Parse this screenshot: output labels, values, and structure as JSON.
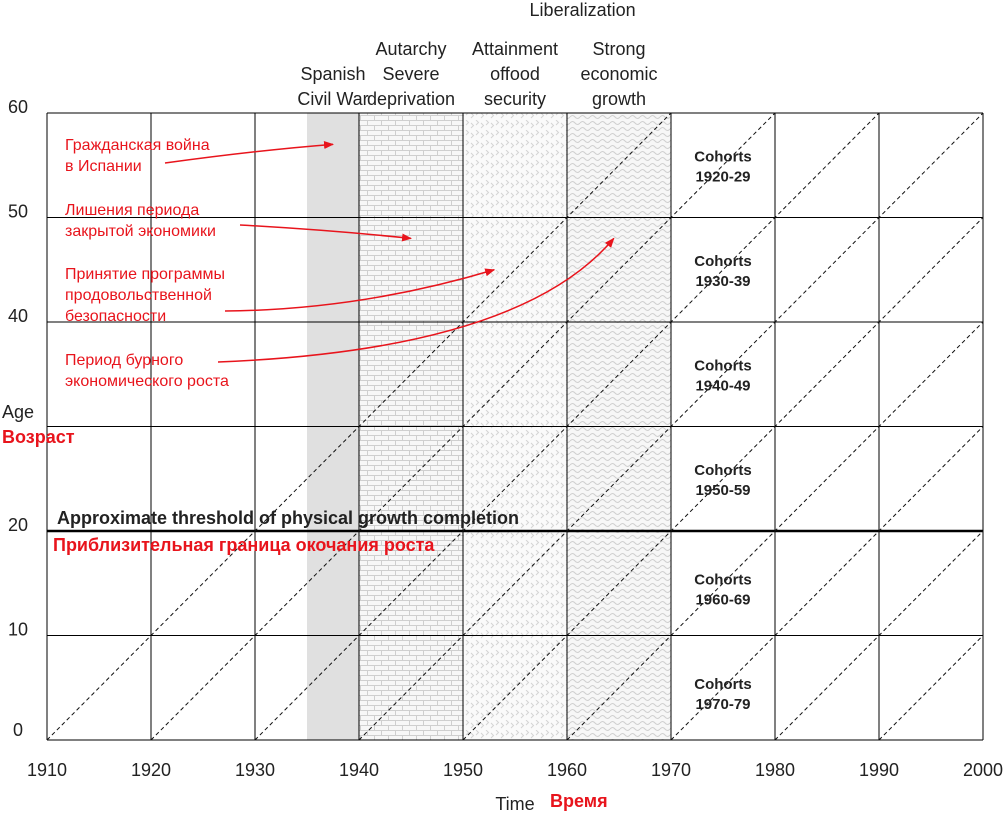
{
  "chart_data": {
    "type": "line",
    "title": "",
    "xlabel": "Time",
    "xlabel_ru": "Время",
    "ylabel": "Age",
    "ylabel_ru": "Возраст",
    "xlim": [
      1910,
      2000
    ],
    "ylim": [
      0,
      60
    ],
    "x_ticks": [
      1910,
      1920,
      1930,
      1940,
      1950,
      1960,
      1970,
      1980,
      1990,
      2000
    ],
    "y_ticks": [
      0,
      10,
      20,
      30,
      40,
      50,
      60
    ],
    "y_tick_labels": [
      "0",
      "10",
      "20",
      "",
      "40",
      "50",
      "60"
    ],
    "grid": true,
    "cohort_diagonal_starts": [
      1910,
      1920,
      1930,
      1940,
      1950,
      1960,
      1970,
      1980,
      1990
    ],
    "cohort_labels": [
      {
        "line1": "Cohorts",
        "line2": "1920-29",
        "age": 55
      },
      {
        "line1": "Cohorts",
        "line2": "1930-39",
        "age": 45
      },
      {
        "line1": "Cohorts",
        "line2": "1940-49",
        "age": 35
      },
      {
        "line1": "Cohorts",
        "line2": "1950-59",
        "age": 25
      },
      {
        "line1": "Cohorts",
        "line2": "1960-69",
        "age": 14.5
      },
      {
        "line1": "Cohorts",
        "line2": "1970-79",
        "age": 4.5
      }
    ],
    "periods": [
      {
        "from": 1935,
        "to": 1940,
        "lines": [
          "Spanish",
          "Civil War"
        ],
        "pattern": "gray",
        "color": "#e0e0e0"
      },
      {
        "from": 1940,
        "to": 1950,
        "lines": [
          "Autarchy",
          "Severe",
          "deprivation"
        ],
        "pattern": "brick",
        "color": "#cfcfcf"
      },
      {
        "from": 1950,
        "to": 1960,
        "lines": [
          "Attainment",
          "offood",
          "security"
        ],
        "pattern": "chevron",
        "color": "#d4d4d4"
      },
      {
        "from": 1960,
        "to": 1970,
        "lines": [
          "Strong",
          "economic",
          "growth"
        ],
        "pattern": "wave",
        "color": "#d0d0d0"
      }
    ],
    "top_label": "Liberalization",
    "threshold": {
      "age": 20,
      "label_en": "Approximate threshold of physical growth completion",
      "label_ru": "Приблизительная граница окочания роста"
    },
    "annotations": [
      {
        "lines": [
          "Гражданская война",
          "в Испании"
        ],
        "points_to": [
          1937.5,
          57
        ]
      },
      {
        "lines": [
          "Лишения периода",
          "закрытой экономики"
        ],
        "points_to": [
          1945,
          48
        ]
      },
      {
        "lines": [
          "Принятие программы",
          "продовольственной",
          "безопасности"
        ],
        "points_to": [
          1953,
          45
        ]
      },
      {
        "lines": [
          "Период бурного",
          "экономического роста"
        ],
        "points_to": [
          1964.5,
          48
        ]
      }
    ],
    "colors": {
      "annotation": "#e8141c",
      "grid": "#000000",
      "text": "#222222"
    }
  }
}
